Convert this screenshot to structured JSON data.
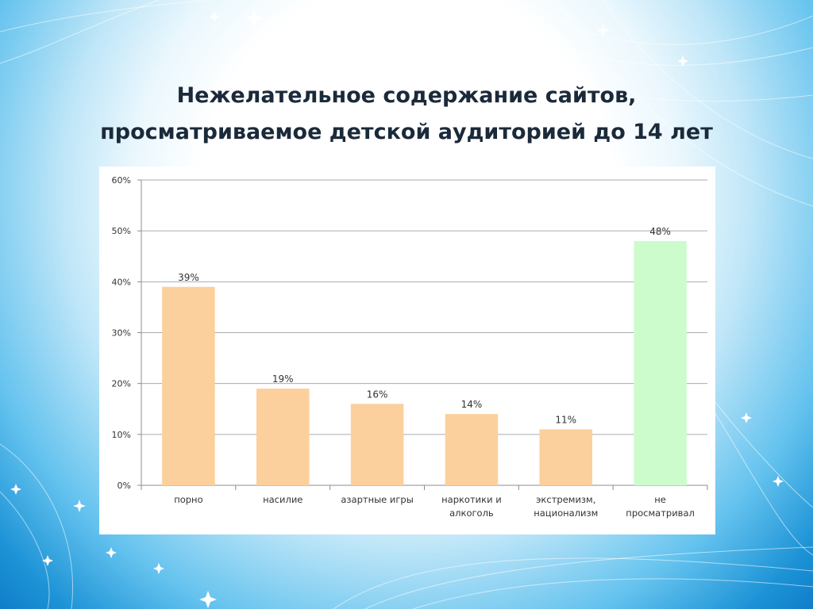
{
  "slide": {
    "title_lines": [
      "Нежелательное содержание сайтов,",
      "просматриваемое детской аудиторией до 14 лет"
    ]
  },
  "colors": {
    "bar": "#fcd09c",
    "bar_highlight": "#ccfccc",
    "gridline": "#a7adb4",
    "axis": "#8c8c8c"
  },
  "chart_data": {
    "type": "bar",
    "categories": [
      [
        "порно"
      ],
      [
        "насилие"
      ],
      [
        "азартные игры"
      ],
      [
        "наркотики и",
        "алкоголь"
      ],
      [
        "экстремизм,",
        "национализм"
      ],
      [
        "не",
        "просматривал"
      ]
    ],
    "values": [
      39,
      19,
      16,
      14,
      11,
      48
    ],
    "value_labels": [
      "39%",
      "19%",
      "16%",
      "14%",
      "11%",
      "48%"
    ],
    "highlighted_index": 5,
    "ylim": [
      0,
      60
    ],
    "yticks": [
      0,
      10,
      20,
      30,
      40,
      50,
      60
    ],
    "ytick_labels": [
      "0%",
      "10%",
      "20%",
      "30%",
      "40%",
      "50%",
      "60%"
    ],
    "grid": true,
    "legend": "none"
  }
}
